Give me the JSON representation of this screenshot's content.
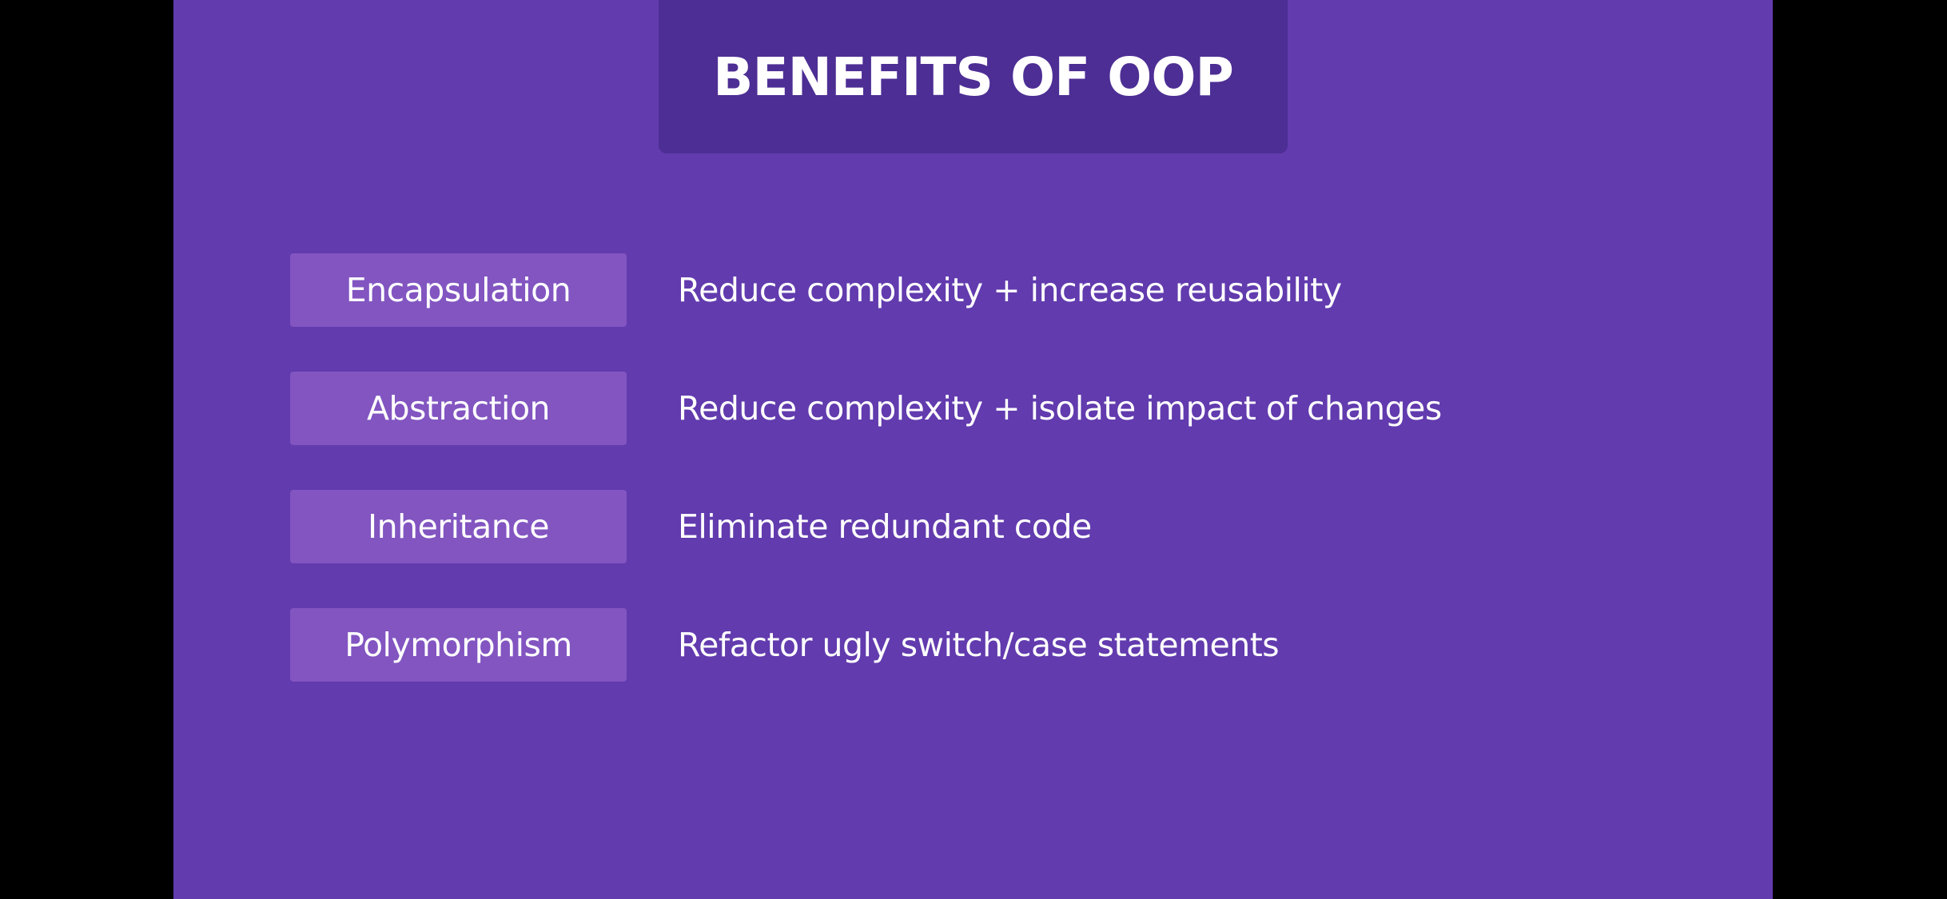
{
  "slide": {
    "title": "BENEFITS OF OOP",
    "colors": {
      "background": "#623BAE",
      "title_box": "#4D2E94",
      "term_box": "#8255C1",
      "text": "#FFFFFF"
    },
    "rows": [
      {
        "term": "Encapsulation",
        "benefit": "Reduce complexity + increase reusability"
      },
      {
        "term": "Abstraction",
        "benefit": "Reduce complexity + isolate impact of changes"
      },
      {
        "term": "Inheritance",
        "benefit": "Eliminate redundant code"
      },
      {
        "term": "Polymorphism",
        "benefit": "Refactor ugly switch/case statements"
      }
    ]
  }
}
